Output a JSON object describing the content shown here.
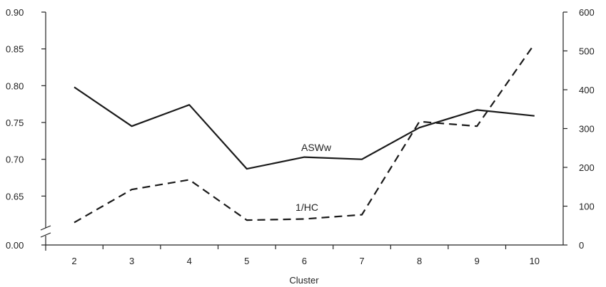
{
  "chart_data": {
    "type": "line",
    "xlabel": "Cluster",
    "ylabel": "",
    "y2label": "",
    "x": [
      2,
      3,
      4,
      5,
      6,
      7,
      8,
      9,
      10
    ],
    "y_left_ticks": [
      "0.00",
      "0.65",
      "0.70",
      "0.75",
      "0.80",
      "0.85",
      "0.90"
    ],
    "y_right_ticks": [
      "0",
      "100",
      "200",
      "300",
      "400",
      "500",
      "600"
    ],
    "y_left_range": [
      0.6,
      0.9
    ],
    "y_left_break": true,
    "y_right_range": [
      0,
      600
    ],
    "grid": false,
    "series": [
      {
        "name": "ASWw",
        "axis": "left",
        "style": "solid",
        "values": [
          0.798,
          0.745,
          0.774,
          0.687,
          0.703,
          0.7,
          0.743,
          0.767,
          0.759
        ]
      },
      {
        "name": "1/HC",
        "axis": "right",
        "style": "dashed",
        "values": [
          58,
          143,
          168,
          64,
          67,
          78,
          318,
          306,
          518
        ]
      }
    ]
  }
}
